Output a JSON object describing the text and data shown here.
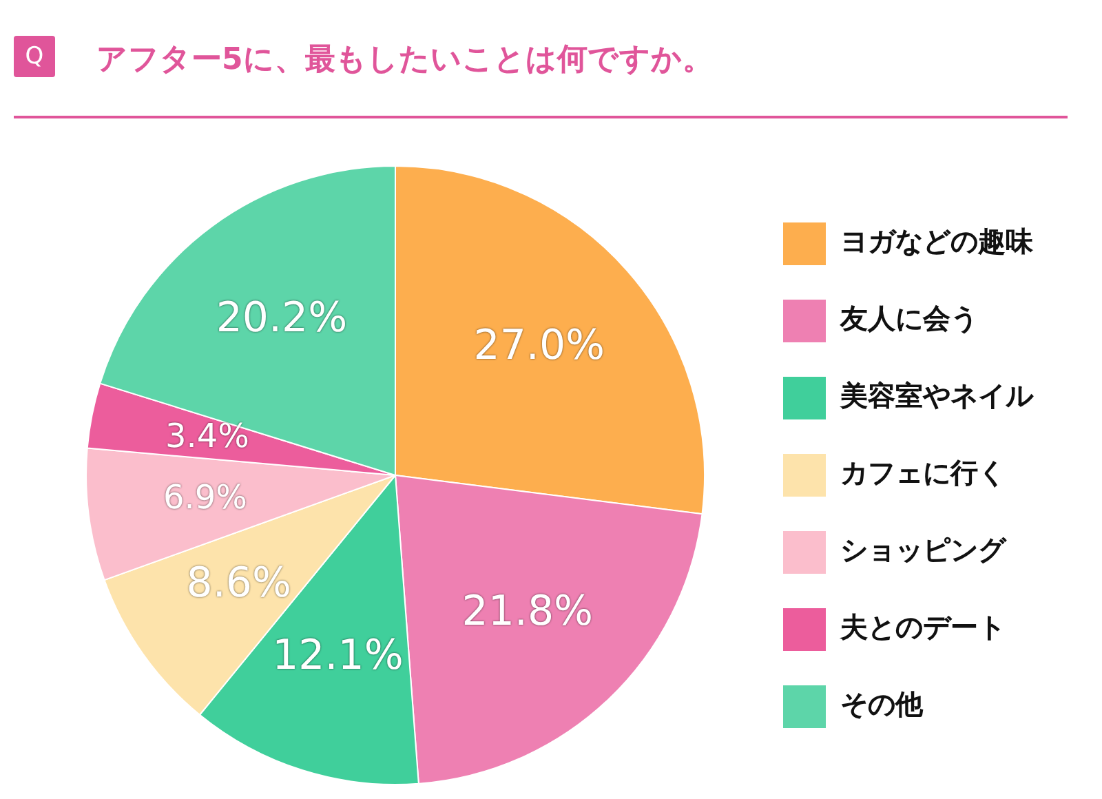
{
  "chart_data": {
    "type": "pie",
    "title": "アフター5に、最もしたいことは何ですか。",
    "annotations": [
      "Q"
    ],
    "categories": [
      "ヨガなどの趣味",
      "友人に会う",
      "美容室やネイル",
      "カフェに行く",
      "ショッピング",
      "夫とのデート",
      "その他"
    ],
    "values": [
      27.0,
      21.8,
      12.1,
      8.6,
      6.9,
      3.4,
      20.2
    ],
    "value_labels": [
      "27.0%",
      "21.8%",
      "12.1%",
      "8.6%",
      "6.9%",
      "3.4%",
      "20.2%"
    ],
    "colors": [
      "#fdae4e",
      "#ee80b2",
      "#40cf9b",
      "#fde3ab",
      "#fbbecc",
      "#ec5d9c",
      "#5dd5a9"
    ],
    "legend": "right"
  }
}
